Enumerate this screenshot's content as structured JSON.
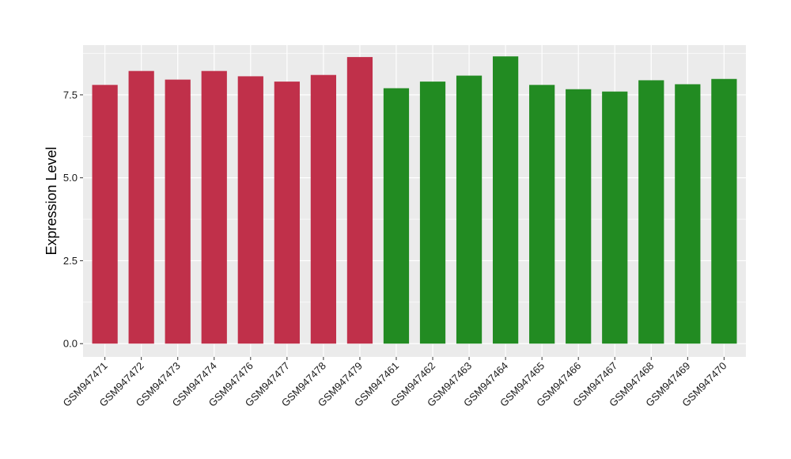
{
  "chart_data": {
    "type": "bar",
    "title": "",
    "xlabel": "",
    "ylabel": "Expression Level",
    "ylim": [
      -0.4,
      9.0
    ],
    "yticks": [
      0.0,
      2.5,
      5.0,
      7.5
    ],
    "ytick_labels": [
      "0.0",
      "2.5",
      "5.0",
      "7.5"
    ],
    "grid": true,
    "legend": "none",
    "categories": [
      "GSM947471",
      "GSM947472",
      "GSM947473",
      "GSM947474",
      "GSM947476",
      "GSM947477",
      "GSM947478",
      "GSM947479",
      "GSM947461",
      "GSM947462",
      "GSM947463",
      "GSM947464",
      "GSM947465",
      "GSM947466",
      "GSM947467",
      "GSM947468",
      "GSM947469",
      "GSM947470"
    ],
    "values": [
      7.8,
      8.22,
      7.96,
      8.22,
      8.06,
      7.9,
      8.1,
      8.64,
      7.7,
      7.9,
      8.08,
      8.66,
      7.8,
      7.67,
      7.6,
      7.94,
      7.82,
      7.98
    ],
    "groups": [
      "red",
      "red",
      "red",
      "red",
      "red",
      "red",
      "red",
      "red",
      "green",
      "green",
      "green",
      "green",
      "green",
      "green",
      "green",
      "green",
      "green",
      "green"
    ],
    "colors": {
      "red": "#c0304a",
      "green": "#228b22",
      "panel": "#ebebeb",
      "grid": "#ffffff"
    }
  }
}
